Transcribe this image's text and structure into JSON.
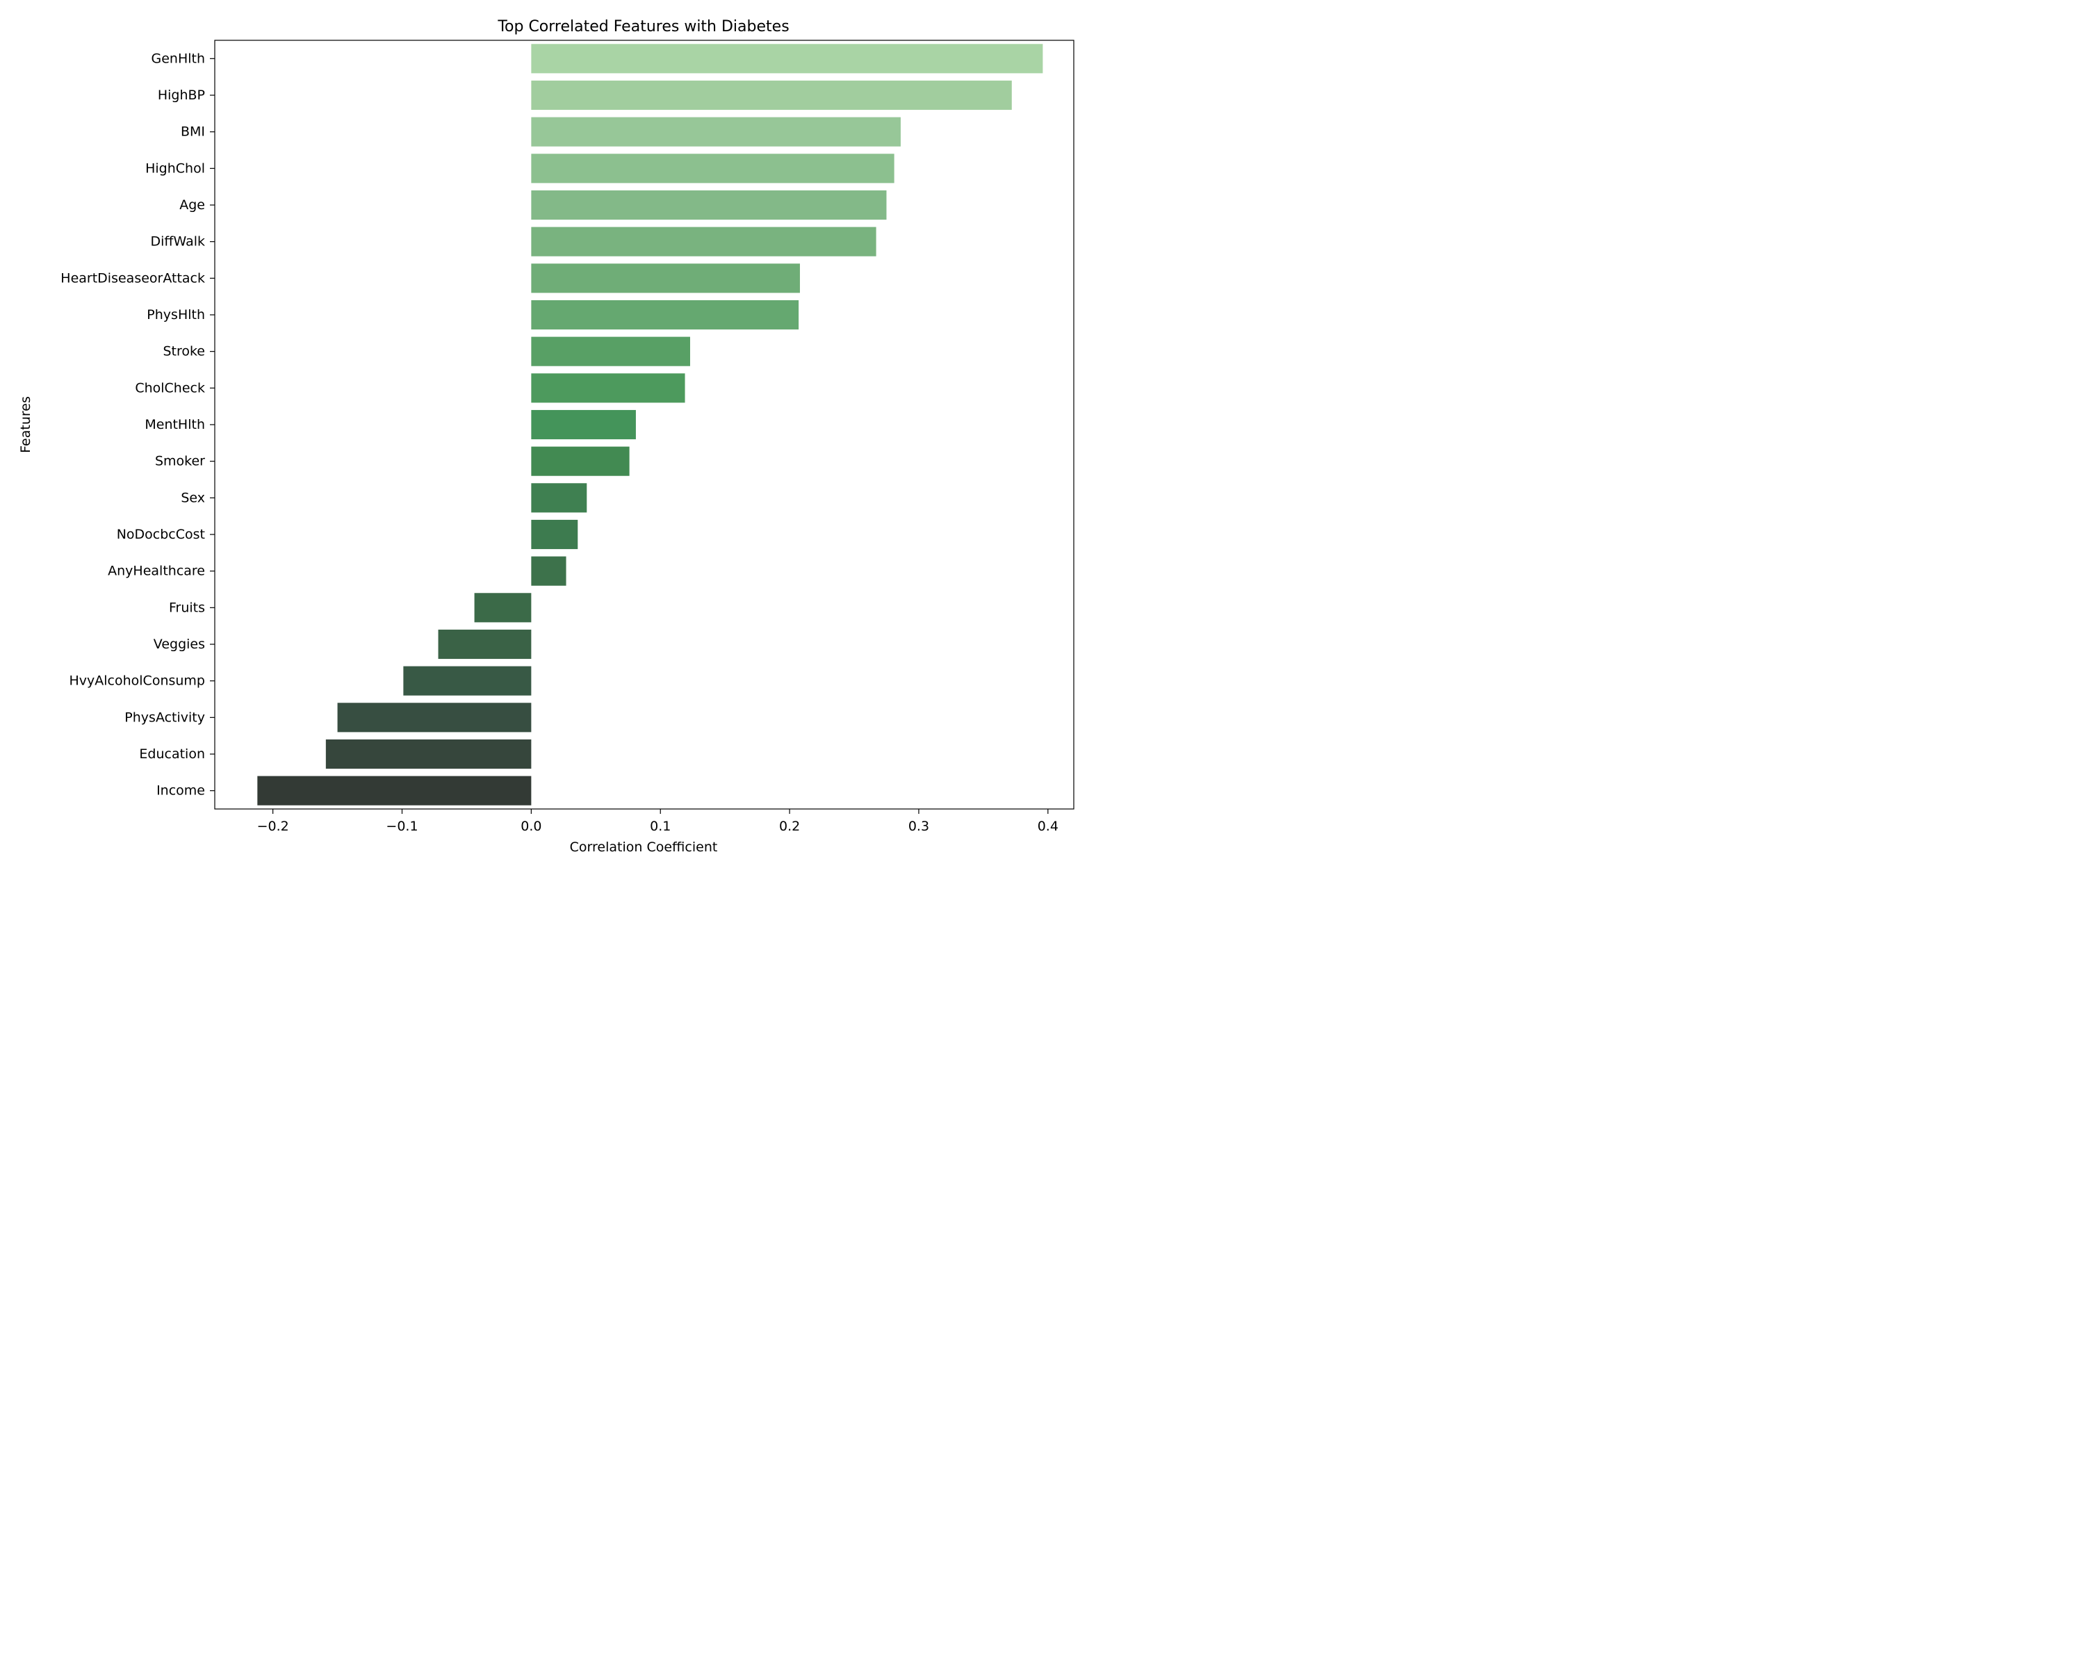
{
  "chart_data": {
    "type": "bar",
    "orientation": "horizontal",
    "title": "Top Correlated Features with Diabetes",
    "xlabel": "Correlation Coefficient",
    "ylabel": "Features",
    "xlim": [
      -0.245,
      0.42
    ],
    "xticks": [
      -0.2,
      -0.1,
      0.0,
      0.1,
      0.2,
      0.3,
      0.4
    ],
    "xtick_labels": [
      "−0.2",
      "−0.1",
      "0.0",
      "0.1",
      "0.2",
      "0.3",
      "0.4"
    ],
    "grid": false,
    "categories": [
      "GenHlth",
      "HighBP",
      "BMI",
      "HighChol",
      "Age",
      "DiffWalk",
      "HeartDiseaseorAttack",
      "PhysHlth",
      "Stroke",
      "CholCheck",
      "MentHlth",
      "Smoker",
      "Sex",
      "NoDocbcCost",
      "AnyHealthcare",
      "Fruits",
      "Veggies",
      "HvyAlcoholConsump",
      "PhysActivity",
      "Education",
      "Income"
    ],
    "values": [
      0.396,
      0.372,
      0.286,
      0.281,
      0.275,
      0.267,
      0.208,
      0.207,
      0.123,
      0.119,
      0.081,
      0.076,
      0.043,
      0.036,
      0.027,
      -0.044,
      -0.072,
      -0.099,
      -0.15,
      -0.159,
      -0.212
    ],
    "colors": [
      "#a9d4a5",
      "#a1cd9e",
      "#97c798",
      "#8cc08f",
      "#83b988",
      "#79b37f",
      "#6fad77",
      "#65a870",
      "#58a065",
      "#4d9a5d",
      "#44945a",
      "#428a52",
      "#3f8051",
      "#3d7b4f",
      "#3d724b",
      "#3b6a48",
      "#3a6246",
      "#385945",
      "#374e41",
      "#36463c",
      "#333a35"
    ]
  }
}
